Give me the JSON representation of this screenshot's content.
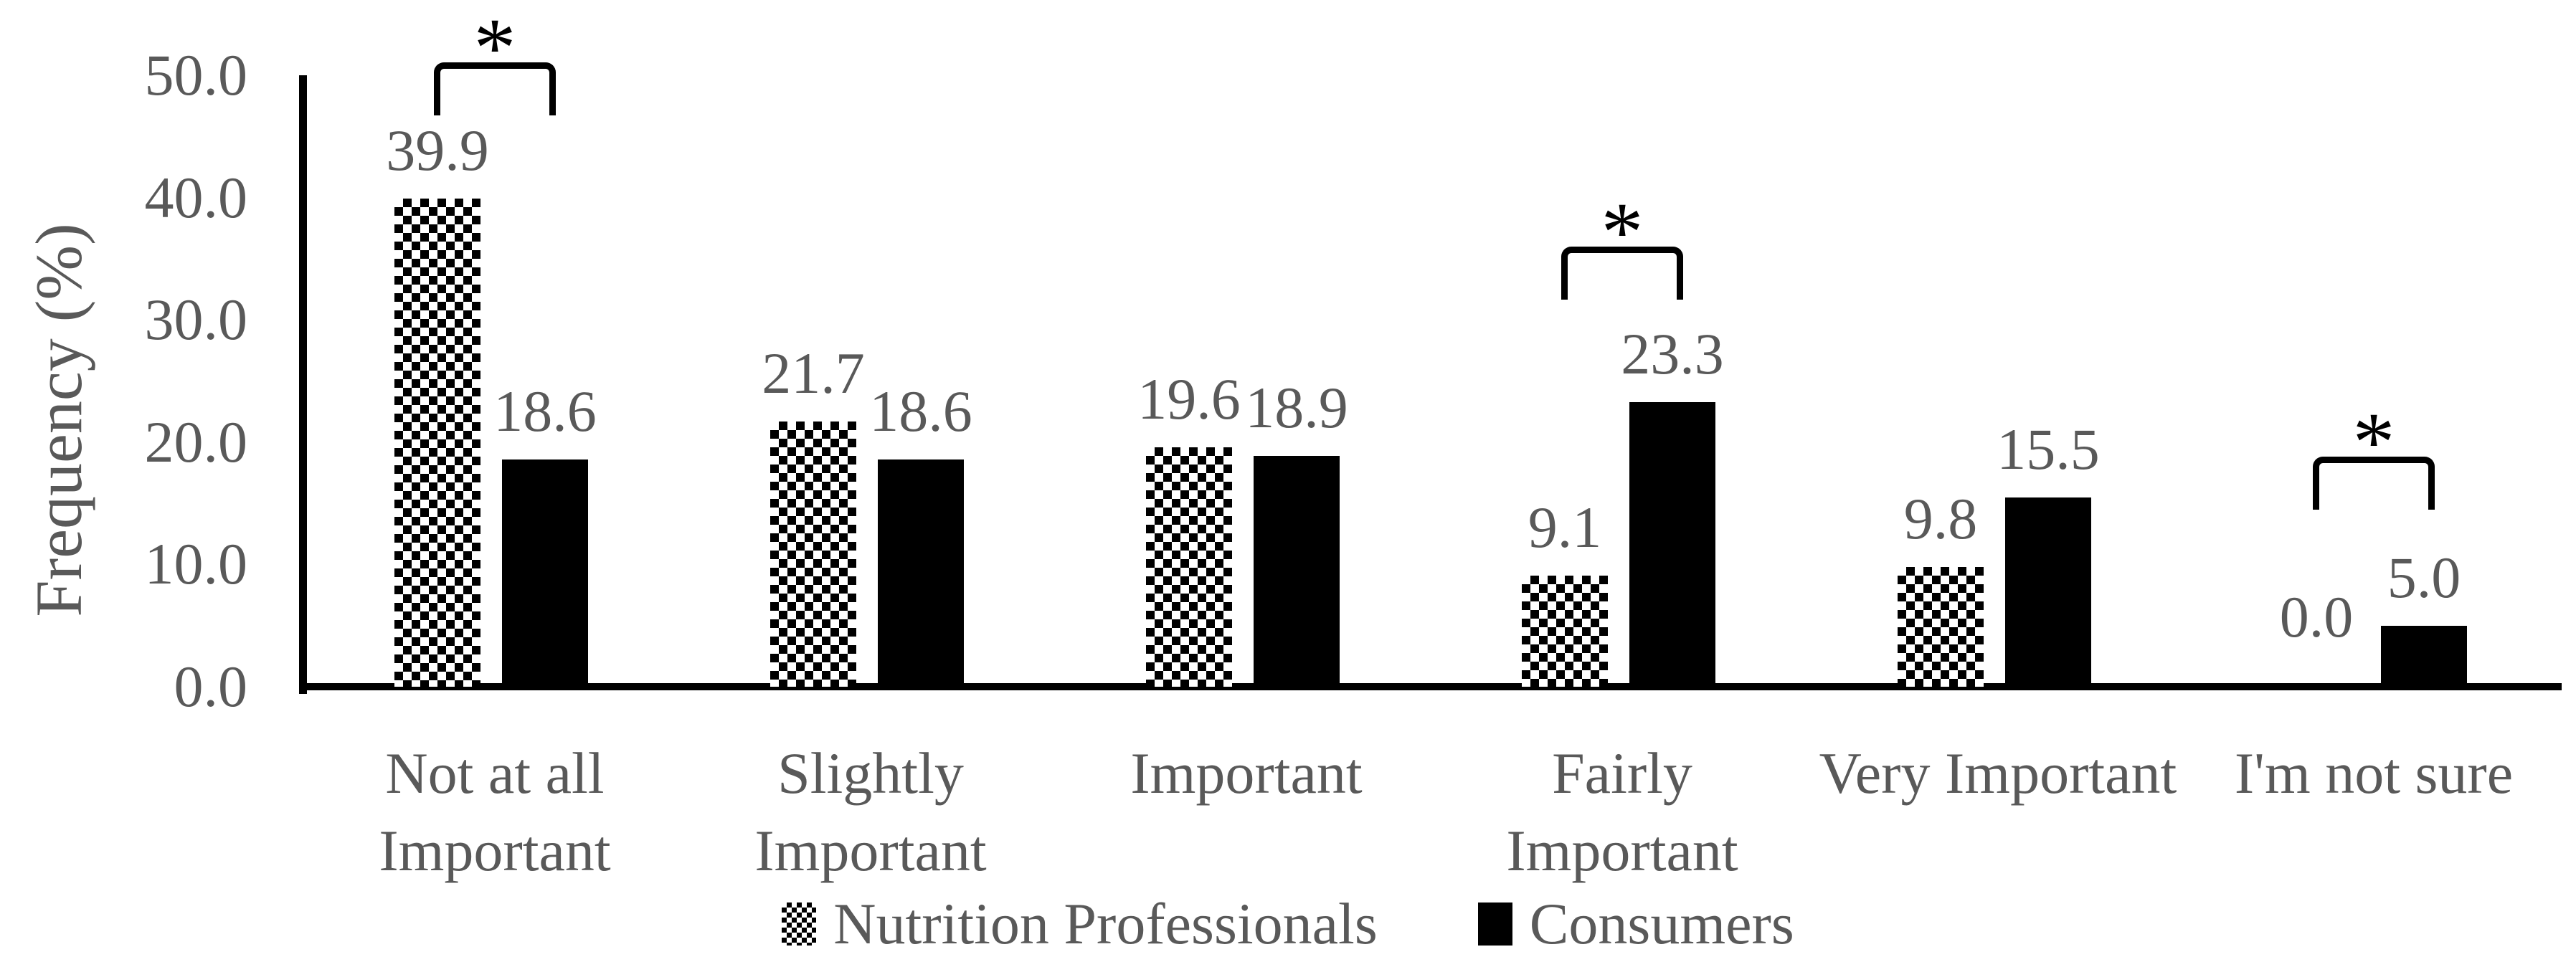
{
  "chart_data": {
    "type": "bar",
    "title": "",
    "xlabel": "",
    "ylabel": "Frequency (%)",
    "ylim": [
      0,
      50
    ],
    "grid": false,
    "legend_position": "bottom",
    "yticks": [
      {
        "value": 50,
        "label": "50.0"
      },
      {
        "value": 40,
        "label": "40.0"
      },
      {
        "value": 30,
        "label": "30.0"
      },
      {
        "value": 20,
        "label": "20.0"
      },
      {
        "value": 10,
        "label": "10.0"
      },
      {
        "value": 0,
        "label": "0.0"
      }
    ],
    "categories": [
      {
        "key": "not-at-all-important",
        "lines": [
          "Not at all",
          "Important"
        ]
      },
      {
        "key": "slightly-important",
        "lines": [
          "Slightly",
          "Important"
        ]
      },
      {
        "key": "important",
        "lines": [
          "Important"
        ]
      },
      {
        "key": "fairly-important",
        "lines": [
          "Fairly",
          "Important"
        ]
      },
      {
        "key": "very-important",
        "lines": [
          "Very Important"
        ]
      },
      {
        "key": "im-not-sure",
        "lines": [
          "I'm not sure"
        ]
      }
    ],
    "series": [
      {
        "name": "Nutrition Professionals",
        "key": "nutrition-professionals",
        "style": "dotted-pattern",
        "values": [
          39.9,
          21.7,
          19.6,
          9.1,
          9.8,
          0.0
        ],
        "labels": [
          "39.9",
          "21.7",
          "19.6",
          "9.1",
          "9.8",
          "0.0"
        ]
      },
      {
        "name": "Consumers",
        "key": "consumers",
        "style": "solid-black",
        "values": [
          18.6,
          18.6,
          18.9,
          23.3,
          15.5,
          5.0
        ],
        "labels": [
          "18.6",
          "18.6",
          "18.9",
          "23.3",
          "15.5",
          "5.0"
        ]
      }
    ],
    "significance": [
      {
        "category_index": 0,
        "marker": "*"
      },
      {
        "category_index": 3,
        "marker": "*"
      },
      {
        "category_index": 5,
        "marker": "*"
      }
    ]
  },
  "colors": {
    "bar_fill": "#000000",
    "axis": "#000000",
    "text": "#595959",
    "marker": "#000000",
    "background": "#ffffff"
  }
}
